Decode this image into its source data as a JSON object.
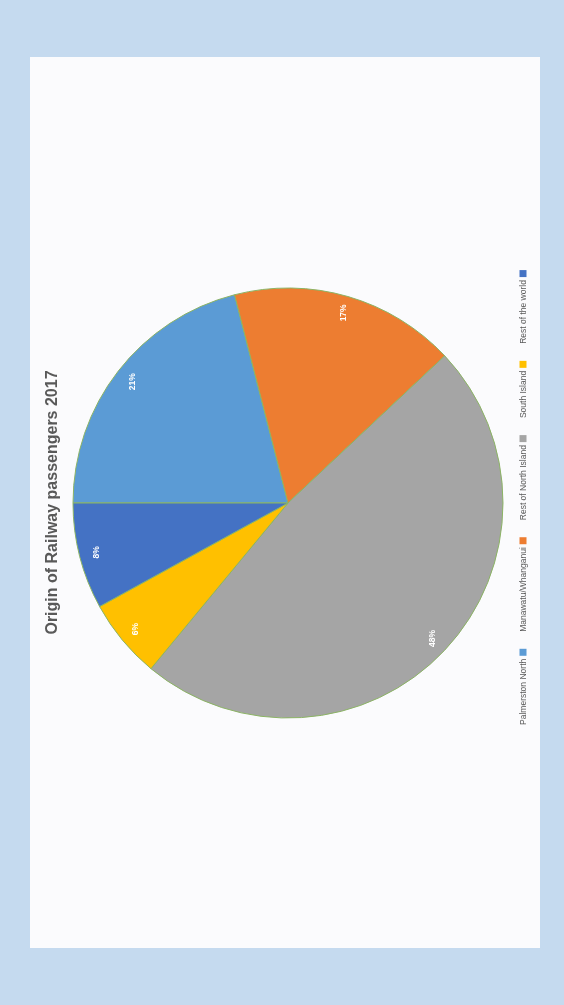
{
  "chart_data": {
    "type": "pie",
    "title": "Origin of Railway passengers 2017",
    "categories": [
      "Palmerston North",
      "Manawatu/Whanganui",
      "Rest of North Island",
      "South Island",
      "Rest of the world"
    ],
    "values": [
      21,
      17,
      48,
      6,
      8
    ],
    "colors": [
      "#5b9bd5",
      "#ed7d31",
      "#a5a5a5",
      "#ffc000",
      "#4472c4"
    ],
    "value_labels": [
      "21%",
      "17%",
      "48%",
      "6%",
      "8%"
    ],
    "legend": "right"
  }
}
